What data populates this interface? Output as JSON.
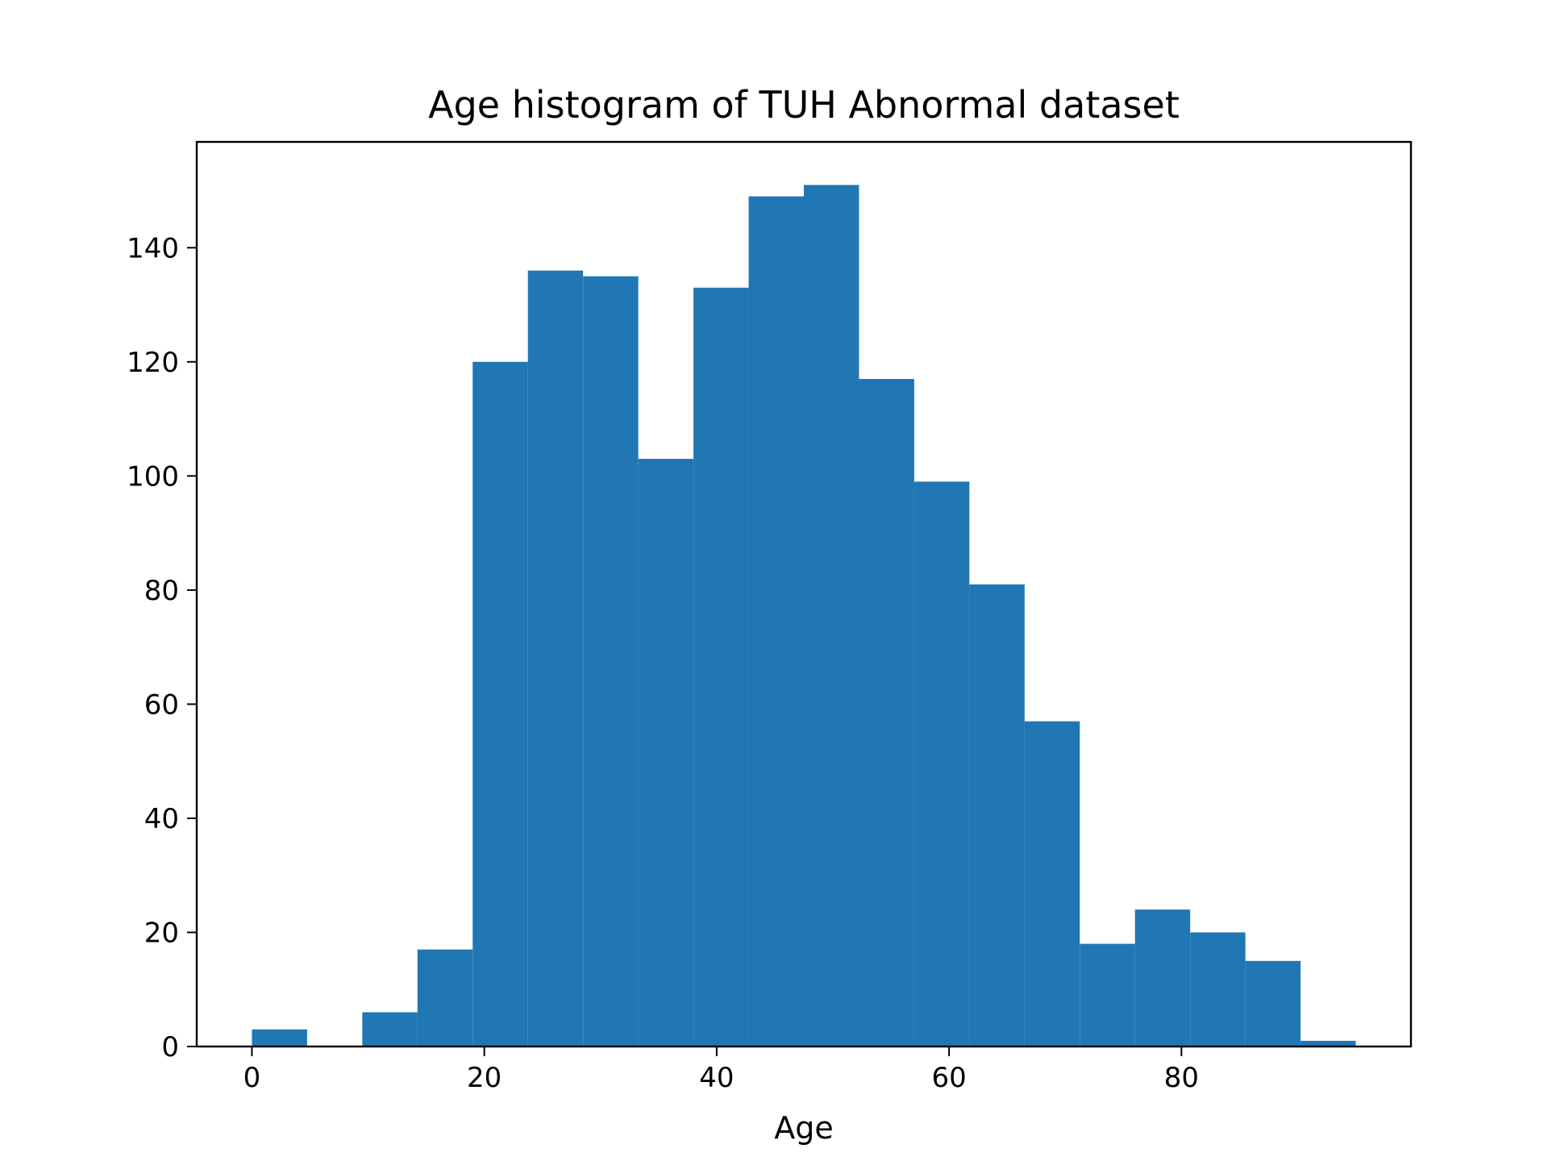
{
  "chart_data": {
    "type": "bar",
    "title": "Age histogram of TUH Abnormal dataset",
    "xlabel": "Age",
    "ylabel": "",
    "bar_color": "#2077b4",
    "bin_edges": [
      0,
      4.75,
      9.5,
      14.25,
      19,
      23.75,
      28.5,
      33.25,
      38,
      42.75,
      47.5,
      52.25,
      57,
      61.75,
      66.5,
      71.25,
      76,
      80.75,
      85.5,
      90.25,
      95
    ],
    "values": [
      3,
      0,
      6,
      17,
      120,
      136,
      135,
      103,
      133,
      149,
      151,
      117,
      99,
      81,
      57,
      18,
      24,
      20,
      15,
      1
    ],
    "xlim": [
      -4.75,
      99.75
    ],
    "ylim": [
      0,
      158.55
    ],
    "xticks": [
      0,
      20,
      40,
      60,
      80
    ],
    "xtick_labels": [
      "0",
      "20",
      "40",
      "60",
      "80"
    ],
    "yticks": [
      0,
      20,
      40,
      60,
      80,
      100,
      120,
      140
    ],
    "ytick_labels": [
      "0",
      "20",
      "40",
      "60",
      "80",
      "100",
      "120",
      "140"
    ],
    "grid": false,
    "legend": "none"
  }
}
